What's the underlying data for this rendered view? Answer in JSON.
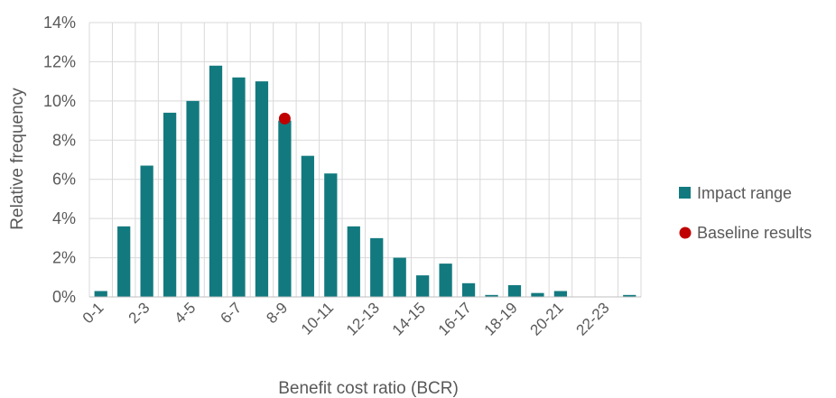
{
  "chart_data": {
    "type": "bar",
    "xlabel": "Benefit cost ratio (BCR)",
    "ylabel": "Relative frequency",
    "ylim": [
      0,
      14
    ],
    "y_ticks": [
      "0%",
      "2%",
      "4%",
      "6%",
      "8%",
      "10%",
      "12%",
      "14%"
    ],
    "categories": [
      "0-1",
      "1-2",
      "2-3",
      "3-4",
      "4-5",
      "5-6",
      "6-7",
      "7-8",
      "8-9",
      "9-10",
      "10-11",
      "11-12",
      "12-13",
      "13-14",
      "14-15",
      "15-16",
      "16-17",
      "17-18",
      "18-19",
      "19-20",
      "20-21",
      "21-22",
      "22-23",
      "23-24"
    ],
    "x_tick_labels": [
      "0-1",
      "2-3",
      "4-5",
      "6-7",
      "8-9",
      "10-11",
      "12-13",
      "14-15",
      "16-17",
      "18-19",
      "20-21",
      "22-23"
    ],
    "grid": true,
    "legend_position": "right",
    "series": [
      {
        "name": "Impact range",
        "kind": "bar",
        "color": "#127a7f",
        "values": [
          0.3,
          3.6,
          6.7,
          9.4,
          10.0,
          11.8,
          11.2,
          11.0,
          9.0,
          7.2,
          6.3,
          3.6,
          3.0,
          2.0,
          1.1,
          1.7,
          0.7,
          0.1,
          0.6,
          0.2,
          0.3,
          0.0,
          0.0,
          0.1
        ]
      },
      {
        "name": "Baseline results",
        "kind": "point",
        "color": "#c00000",
        "x_category": "8-9",
        "value": 9.1
      }
    ]
  }
}
